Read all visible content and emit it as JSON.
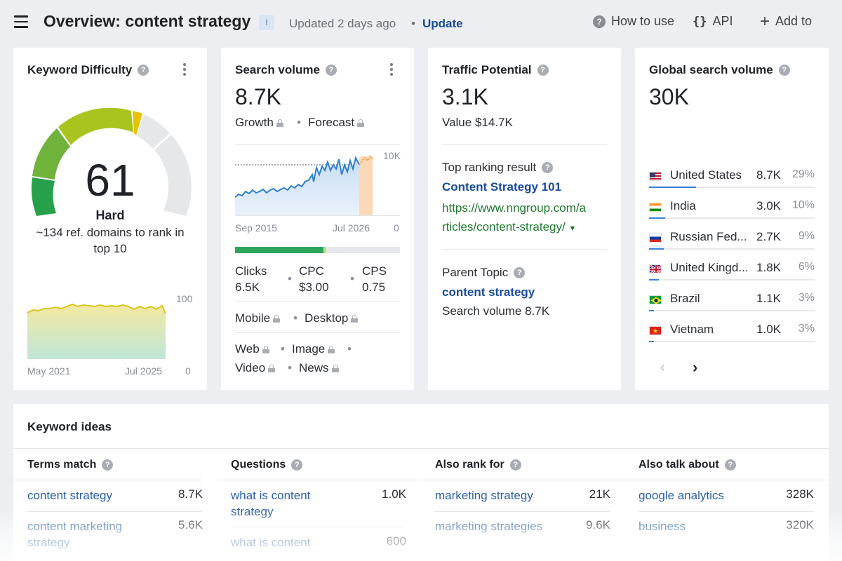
{
  "header": {
    "title": "Overview: content strategy",
    "badge": "I",
    "updated": "Updated 2 days ago",
    "separator": "•",
    "update_link": "Update",
    "how_to_use": "How to use",
    "api": "API",
    "add_to": "Add to"
  },
  "keyword_difficulty": {
    "title": "Keyword Difficulty",
    "score": "61",
    "level": "Hard",
    "description": "~134 ref. domains to rank in top 10",
    "chart": {
      "type": "area",
      "x_start": "May 2021",
      "x_end": "Jul 2025",
      "y_max": "100",
      "y_min": "0"
    }
  },
  "search_volume": {
    "title": "Search volume",
    "value": "8.7K",
    "growth": "Growth",
    "forecast": "Forecast",
    "chart": {
      "type": "line",
      "x_start": "Sep 2015",
      "x_end": "Jul 2026",
      "y_max": "10K",
      "y_min": "0"
    },
    "clicks_label": "Clicks",
    "clicks_value": "6.5K",
    "cpc_label": "CPC",
    "cpc_value": "$3.00",
    "cps_label": "CPS",
    "cps_value": "0.75",
    "mobile": "Mobile",
    "desktop": "Desktop",
    "web": "Web",
    "image": "Image",
    "video": "Video",
    "news": "News"
  },
  "traffic_potential": {
    "title": "Traffic Potential",
    "value": "3.1K",
    "value_label": "Value $14.7K",
    "top_ranking_label": "Top ranking result",
    "top_ranking_title": "Content Strategy 101",
    "top_ranking_url_1": "https://www.nngroup.com/a",
    "top_ranking_url_2": "rticles/content-strategy/",
    "parent_topic_label": "Parent Topic",
    "parent_topic": "content strategy",
    "parent_volume": "Search volume 8.7K"
  },
  "global_volume": {
    "title": "Global search volume",
    "value": "30K",
    "countries": [
      {
        "name": "United States",
        "volume": "8.7K",
        "percent": "29%",
        "share": 29
      },
      {
        "name": "India",
        "volume": "3.0K",
        "percent": "10%",
        "share": 10
      },
      {
        "name": "Russian Fed...",
        "volume": "2.7K",
        "percent": "9%",
        "share": 9
      },
      {
        "name": "United Kingd...",
        "volume": "1.8K",
        "percent": "6%",
        "share": 6
      },
      {
        "name": "Brazil",
        "volume": "1.1K",
        "percent": "3%",
        "share": 3
      },
      {
        "name": "Vietnam",
        "volume": "1.0K",
        "percent": "3%",
        "share": 3
      }
    ],
    "prev_icon": "chevron-left-icon",
    "next_icon": "chevron-right-icon"
  },
  "keyword_ideas": {
    "title": "Keyword ideas",
    "columns": [
      {
        "header": "Terms match",
        "items": [
          {
            "term": "content strategy",
            "volume": "8.7K"
          },
          {
            "term": "content marketing strategy",
            "volume": "5.6K"
          }
        ]
      },
      {
        "header": "Questions",
        "items": [
          {
            "term": "what is content strategy",
            "volume": "1.0K"
          },
          {
            "term": "what is content",
            "volume": "600"
          }
        ]
      },
      {
        "header": "Also rank for",
        "items": [
          {
            "term": "marketing strategy",
            "volume": "21K"
          },
          {
            "term": "marketing strategies",
            "volume": "9.6K"
          }
        ]
      },
      {
        "header": "Also talk about",
        "items": [
          {
            "term": "google analytics",
            "volume": "328K"
          },
          {
            "term": "business",
            "volume": "320K"
          }
        ]
      }
    ]
  },
  "colors": {
    "accent": "#1a4b9b",
    "green": "#1f7a2e",
    "gauge_green": "#2f9e47",
    "gauge_yellow": "#e6c200",
    "gauge_grey": "#e4e6e9"
  }
}
